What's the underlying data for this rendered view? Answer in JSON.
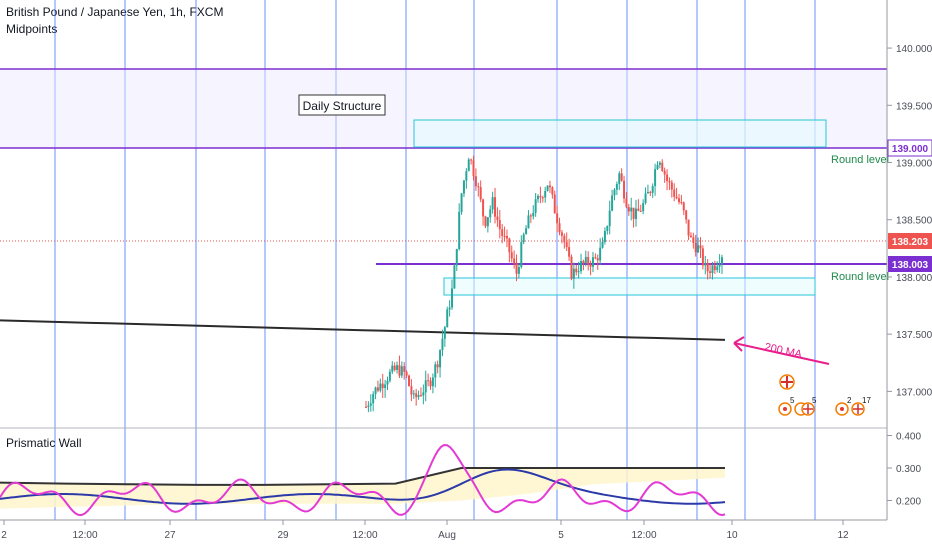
{
  "header": {
    "symbol_line": "British Pound / Japanese Yen, 1h, FXCM",
    "study_name": "Midpoints",
    "oscillator_name": "Prismatic Wall"
  },
  "colors": {
    "up": "#26a69a",
    "down": "#ef5350",
    "midpoint_line": "#7b2fd0",
    "grid_vertical": "#2962ff",
    "ma200": "#2a2a2a",
    "zone_box": "#26c6da",
    "arrow": "#e91e8c",
    "osc_fast": "#e33ad4",
    "osc_slow": "#2b3aa8",
    "osc_fill": "#fff6cc"
  },
  "annotations": {
    "daily_structure": "Daily Structure",
    "round_level_upper": "Round level",
    "round_level_lower": "Round level",
    "ma_label": "200 MA"
  },
  "price_tags": {
    "upper_level": "139.000",
    "last_price": "138.203",
    "lower_level": "138.003"
  },
  "event_markers": {
    "count_a": "5",
    "count_b": "5",
    "count_c": "2",
    "count_d": "17"
  },
  "chart_data": {
    "type": "candlestick",
    "interval": "1h",
    "price_axis": {
      "ylim": [
        136.68,
        140.42
      ],
      "ticks": [
        "140.000",
        "139.500",
        "139.000",
        "138.500",
        "138.000",
        "137.500",
        "137.000"
      ]
    },
    "time_axis": {
      "tick_labels": [
        "2",
        "12:00",
        "27",
        "29",
        "12:00",
        "Aug",
        "5",
        "12:00",
        "10",
        "12"
      ]
    },
    "levels": {
      "daily_structure_top": 139.68,
      "upper_round": 139.0,
      "lower_round": 138.003,
      "last": 138.203
    },
    "price_path": [
      [
        137.05,
        136.68
      ],
      [
        137.02,
        136.98
      ],
      [
        137.1,
        137.05
      ],
      [
        137.4,
        136.9
      ],
      [
        137.3,
        137.1
      ],
      [
        137.05,
        137.25
      ],
      [
        136.9,
        136.95
      ],
      [
        137.2,
        136.8
      ],
      [
        137.0,
        137.15
      ],
      [
        137.45,
        137.05
      ],
      [
        137.55,
        137.6
      ],
      [
        137.9,
        137.95
      ],
      [
        138.6,
        138.8
      ],
      [
        139.05,
        139.1
      ],
      [
        138.9,
        138.75
      ],
      [
        138.4,
        138.55
      ],
      [
        138.7,
        138.6
      ],
      [
        138.45,
        138.35
      ],
      [
        138.2,
        138.3
      ],
      [
        138.1,
        137.95
      ],
      [
        138.3,
        138.45
      ],
      [
        138.6,
        138.55
      ],
      [
        138.75,
        138.65
      ],
      [
        138.8,
        138.85
      ],
      [
        138.6,
        138.5
      ],
      [
        138.3,
        138.35
      ],
      [
        138.1,
        137.95
      ],
      [
        138.05,
        138.15
      ],
      [
        138.2,
        138.05
      ],
      [
        138.1,
        138.2
      ],
      [
        138.15,
        138.4
      ],
      [
        138.6,
        138.75
      ],
      [
        138.95,
        138.85
      ],
      [
        138.7,
        138.6
      ],
      [
        138.5,
        138.55
      ],
      [
        138.6,
        138.65
      ],
      [
        138.7,
        138.85
      ],
      [
        139.1,
        139.05
      ],
      [
        138.9,
        138.8
      ],
      [
        138.7,
        138.75
      ],
      [
        138.65,
        138.55
      ],
      [
        138.4,
        138.25
      ],
      [
        138.3,
        138.2
      ],
      [
        138.1,
        138.0
      ],
      [
        138.05,
        138.15
      ],
      [
        138.2,
        138.203
      ]
    ],
    "ma200": {
      "start": 137.62,
      "end": 137.45
    },
    "oscillator": {
      "ylim": [
        0.14,
        0.42
      ],
      "ticks": [
        "0.400",
        "0.300",
        "0.200"
      ],
      "band_upper": [
        0.255,
        0.252,
        0.25,
        0.248,
        0.248,
        0.25,
        0.252,
        0.3,
        0.3,
        0.3,
        0.3,
        0.3
      ],
      "band_lower": [
        0.175,
        0.18,
        0.185,
        0.19,
        0.19,
        0.19,
        0.19,
        0.2,
        0.22,
        0.25,
        0.26,
        0.27
      ]
    }
  }
}
